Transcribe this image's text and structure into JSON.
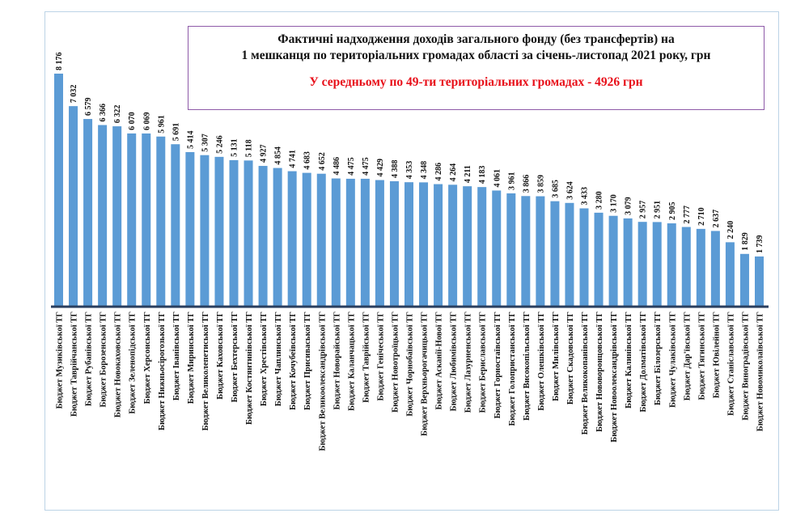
{
  "chart_data": {
    "type": "bar",
    "title": "Фактичні надходження доходів загального фонду (без трансфертів) на 1 мешканця по територіальних громадах області за січень-листопад 2021 року, грн",
    "title_line1": "Фактичні надходження доходів загального фонду (без трансфертів) на",
    "title_line2": "1 мешканця по територіальних громадах області за січень-листопад 2021 року, грн",
    "subtitle": "У середньому по 49-ти територіальних громадах - 4926 грн",
    "xlabel": "",
    "ylabel": "",
    "ylim": [
      0,
      8176
    ],
    "grid": false,
    "bar_color": "#5b9bd5",
    "subtitle_color": "#e8101a",
    "categories": [
      "Бюджет Музиківської ТГ",
      "Бюджет Таврійчанської ТГ",
      "Бюджет Рубанівської ТГ",
      "Бюджет Борозенської ТГ",
      "Бюджет Новокаховської ТГ",
      "Бюджет Зеленопідської ТГ",
      "Бюджет Херсонської ТГ",
      "Бюджет Нижньосірогозької ТГ",
      "Бюджет Іванівської ТГ",
      "Бюджет Миринської ТГ",
      "Бюджет Великолепетиської ТГ",
      "Бюджет Каховської ТГ",
      "Бюджет Бехтерської ТГ",
      "Бюджет Костянтинівської ТГ",
      "Бюджет Хрестівської ТГ",
      "Бюджет Чаплинської ТГ",
      "Бюджет Кочубеївської ТГ",
      "Бюджет Присиваської ТГ",
      "Бюджет Великоолександрівської ТГ",
      "Бюджет Новорайської ТГ",
      "Бюджет Каланчацької ТГ",
      "Бюджет Таврійської ТГ",
      "Бюджет Генічеської ТГ",
      "Бюджет Новотроїцької ТГ",
      "Бюджет Чорнобаївської ТГ",
      "Бюджет Верхньорогачицької ТГ",
      "Бюджет Асканії-Нової ТГ",
      "Бюджет Любимівської ТГ",
      "Бюджет Лазурненської ТГ",
      "Бюджет Бериславської ТГ",
      "Бюджет Горностаївської ТГ",
      "Бюджет Голопристанської ТГ",
      "Бюджет Високопільської ТГ",
      "Бюджет Олешківської ТГ",
      "Бюджет Милівської ТГ",
      "Бюджет Скадовської ТГ",
      "Бюджет Великокопанівської ТГ",
      "Бюджет Нововоронцовської ТГ",
      "Бюджет Новоолександрівської ТГ",
      "Бюджет Калинівської ТГ",
      "Бюджет Долматівської ТГ",
      "Бюджет Білозерської ТГ",
      "Бюджет Чулаківської ТГ",
      "Бюджет Дар'ївської ТГ",
      "Бюджет Тягинської ТГ",
      "Бюджет Ювілейної ТГ",
      "Бюджет Станіславської ТГ",
      "Бюджет Виноградівської ТГ",
      "Бюджет Новомиколаївської ТГ"
    ],
    "values": [
      8176,
      7032,
      6579,
      6366,
      6322,
      6070,
      6069,
      5961,
      5691,
      5414,
      5307,
      5246,
      5131,
      5118,
      4927,
      4854,
      4741,
      4683,
      4652,
      4486,
      4475,
      4475,
      4429,
      4388,
      4353,
      4348,
      4286,
      4264,
      4211,
      4183,
      4061,
      3961,
      3866,
      3859,
      3685,
      3624,
      3433,
      3280,
      3170,
      3079,
      2957,
      2951,
      2905,
      2777,
      2710,
      2637,
      2240,
      1829,
      1739
    ],
    "value_labels": [
      "8 176",
      "7 032",
      "6 579",
      "6 366",
      "6 322",
      "6 070",
      "6 069",
      "5 961",
      "5 691",
      "5 414",
      "5 307",
      "5 246",
      "5 131",
      "5 118",
      "4 927",
      "4 854",
      "4 741",
      "4 683",
      "4 652",
      "4 486",
      "4 475",
      "4 475",
      "4 429",
      "4 388",
      "4 353",
      "4 348",
      "4 286",
      "4 264",
      "4 211",
      "4 183",
      "4 061",
      "3 961",
      "3 866",
      "3 859",
      "3 685",
      "3 624",
      "3 433",
      "3 280",
      "3 170",
      "3 079",
      "2 957",
      "2 951",
      "2 905",
      "2 777",
      "2 710",
      "2 637",
      "2 240",
      "1 829",
      "1 739"
    ]
  }
}
